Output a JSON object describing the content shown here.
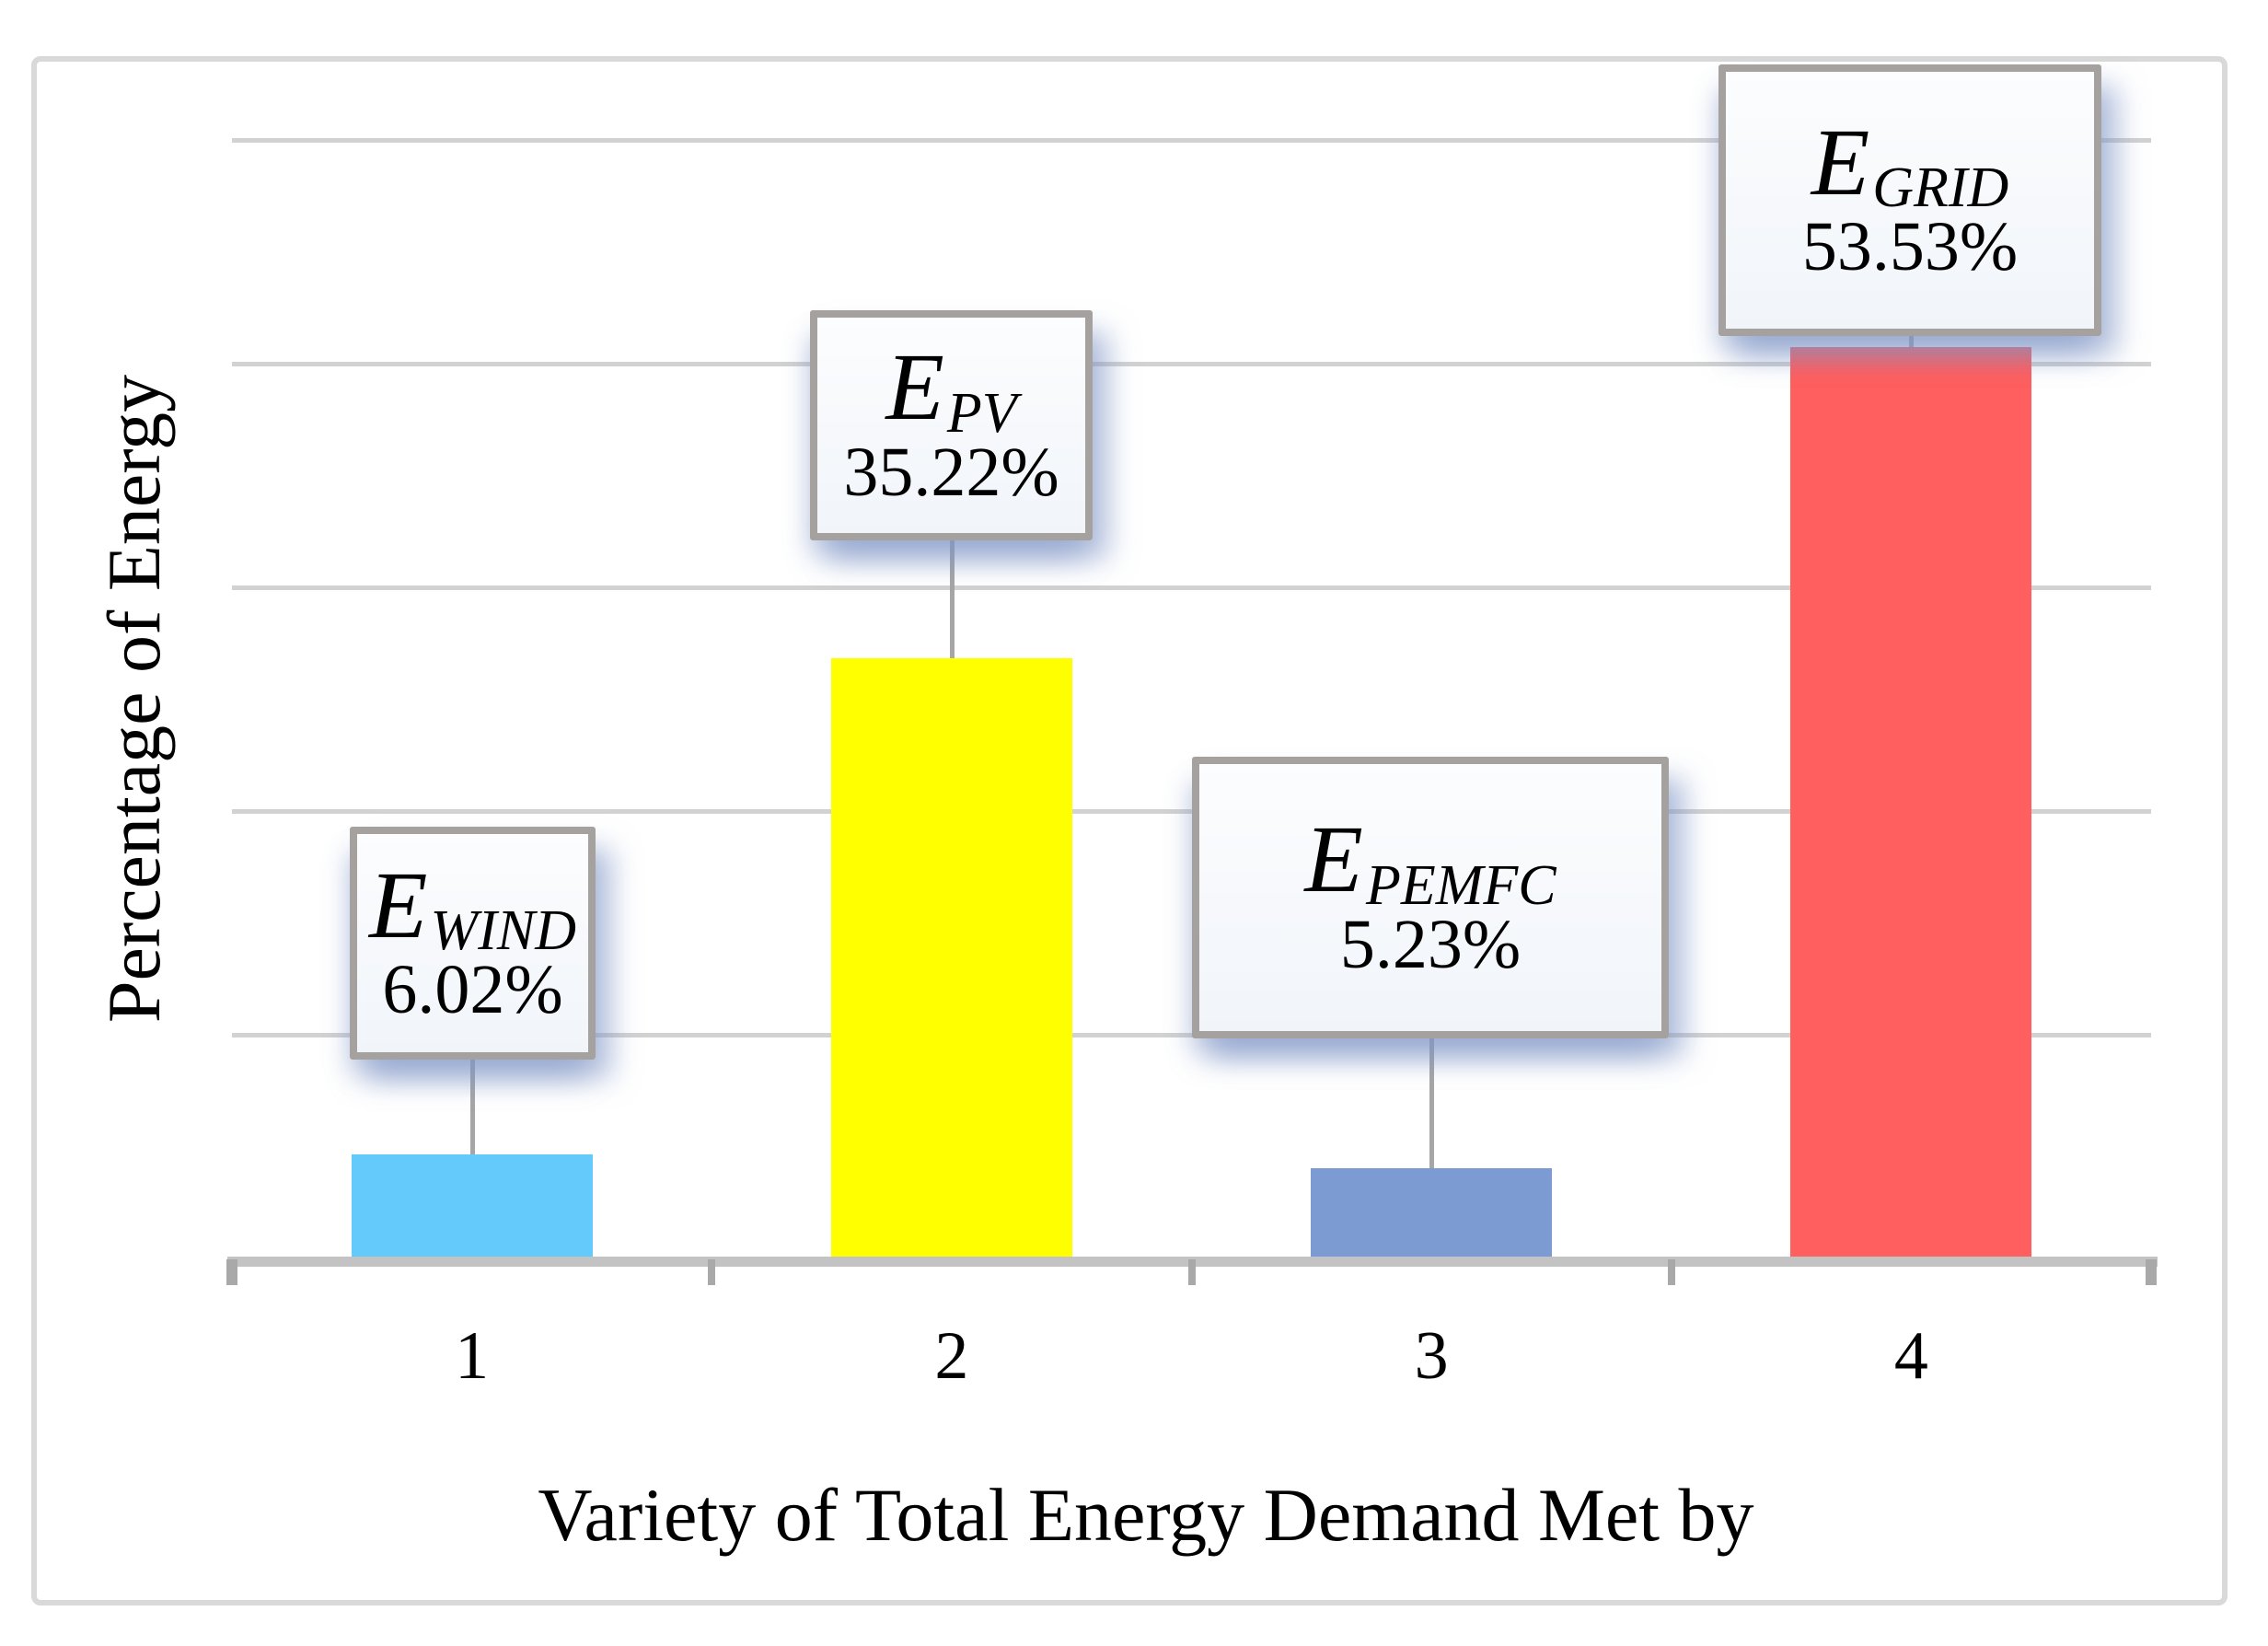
{
  "chart_data": {
    "type": "bar",
    "title": "",
    "xlabel": "Variety of Total Energy Demand Met by",
    "ylabel": "Percentage of Energy",
    "categories": [
      "1",
      "2",
      "3",
      "4"
    ],
    "values": [
      6.02,
      35.22,
      5.23,
      53.53
    ],
    "series": [
      {
        "category": "1",
        "label_main": "E",
        "label_sub": "WIND",
        "value": 6.02,
        "value_label": "6.02%",
        "bar_color": "#64c9fb"
      },
      {
        "category": "2",
        "label_main": "E",
        "label_sub": "PV",
        "value": 35.22,
        "value_label": "35.22%",
        "bar_color": "#ffff00"
      },
      {
        "category": "3",
        "label_main": "E",
        "label_sub": "PEMFC",
        "value": 5.23,
        "value_label": "5.23%",
        "bar_color": "#7c9bd3"
      },
      {
        "category": "4",
        "label_main": "E",
        "label_sub": "GRID",
        "value": 53.53,
        "value_label": "53.53%",
        "bar_color": "#ff5f5f"
      }
    ],
    "ylim": [
      0,
      65
    ],
    "gridline_count": 5,
    "grid_on": true,
    "legend": "none"
  },
  "colors": {
    "gridline": "#d2d2d2",
    "axis_band": "#c3c3c3",
    "axis_tick": "#a9a9a9",
    "figure_border": "#d9d9d9",
    "callout_border": "#a5a19e",
    "callout_background": "#f7f9fc",
    "leader_line": "#a6a6a6",
    "text": "#000000",
    "callout_shadow": "rgba(127,150,199,0.5)"
  }
}
